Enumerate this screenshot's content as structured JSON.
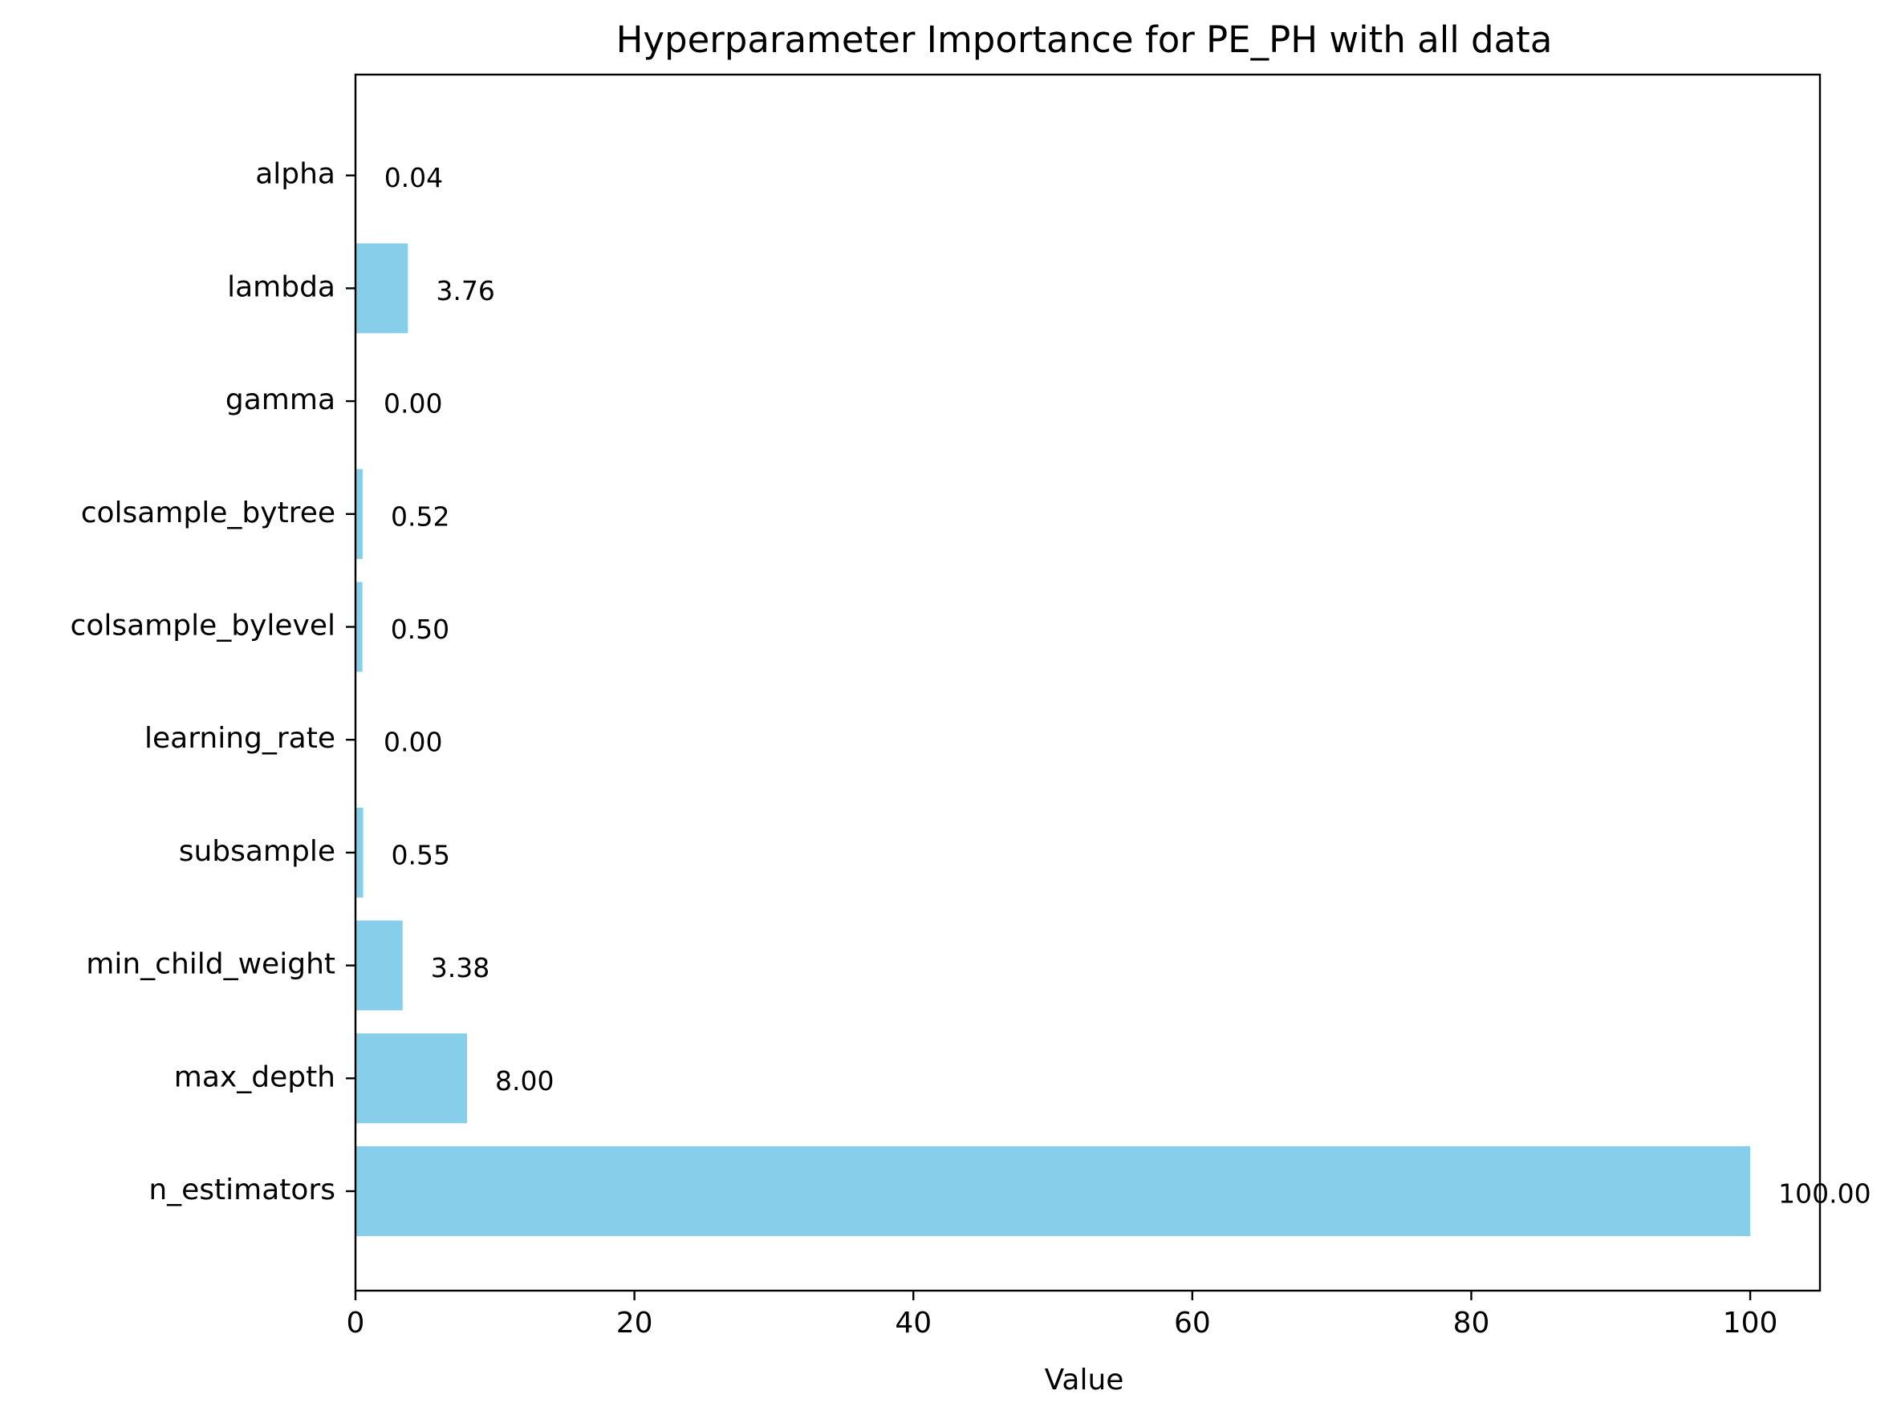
{
  "chart_data": {
    "type": "bar",
    "orientation": "horizontal",
    "title": "Hyperparameter Importance for PE_PH with all data",
    "xlabel": "Value",
    "ylabel": "",
    "categories": [
      "n_estimators",
      "max_depth",
      "min_child_weight",
      "subsample",
      "learning_rate",
      "colsample_bylevel",
      "colsample_bytree",
      "gamma",
      "lambda",
      "alpha"
    ],
    "values": [
      100.0,
      8.0,
      3.38,
      0.55,
      0.0,
      0.5,
      0.52,
      0.0,
      3.76,
      0.04
    ],
    "value_labels": [
      "100.00",
      "8.00",
      "3.38",
      "0.55",
      "0.00",
      "0.50",
      "0.52",
      "0.00",
      "3.76",
      "0.04"
    ],
    "xlim": [
      0,
      105
    ],
    "xticks": [
      0,
      20,
      40,
      60,
      80,
      100
    ],
    "xtick_labels": [
      "0",
      "20",
      "40",
      "60",
      "80",
      "100"
    ],
    "grid": false,
    "legend": "none",
    "bar_color": "#87CEEB"
  }
}
